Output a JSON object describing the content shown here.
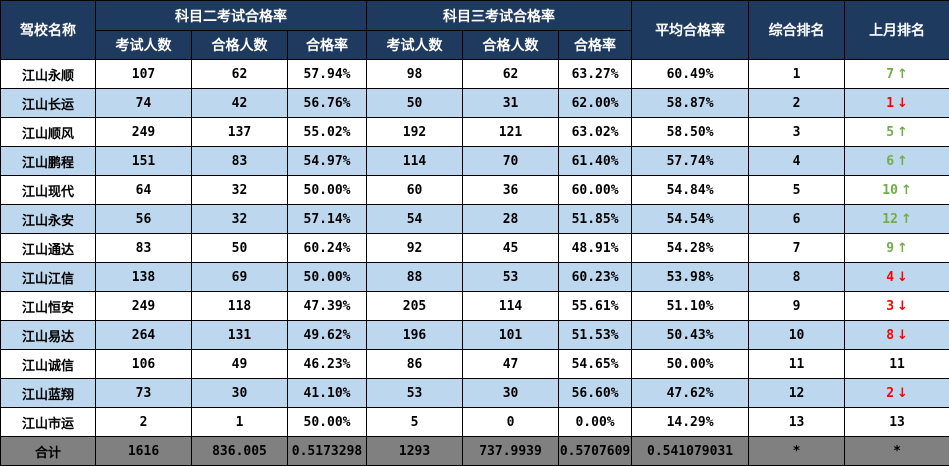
{
  "header": {
    "school": "驾校名称",
    "subject2": "科目二考试合格率",
    "subject3": "科目三考试合格率",
    "avg_rate": "平均合格率",
    "overall_rank": "综合排名",
    "last_month_rank": "上月排名",
    "sub_cols": [
      "考试人数",
      "合格人数",
      "合格率",
      "考试人数",
      "合格人数",
      "合格率"
    ]
  },
  "colors": {
    "header_bg": "#1f3a5f",
    "alt_row": "#bdd7ee",
    "total_row": "#808080",
    "up": "#70ad47",
    "down": "#ff0000"
  },
  "rows": [
    {
      "name": "江山永顺",
      "s2_n": "107",
      "s2_pass": "62",
      "s2_rate": "57.94%",
      "s3_n": "98",
      "s3_pass": "62",
      "s3_rate": "63.27%",
      "avg": "60.49%",
      "rank": "1",
      "last": "7",
      "trend": "up"
    },
    {
      "name": "江山长运",
      "s2_n": "74",
      "s2_pass": "42",
      "s2_rate": "56.76%",
      "s3_n": "50",
      "s3_pass": "31",
      "s3_rate": "62.00%",
      "avg": "58.87%",
      "rank": "2",
      "last": "1",
      "trend": "down"
    },
    {
      "name": "江山顺风",
      "s2_n": "249",
      "s2_pass": "137",
      "s2_rate": "55.02%",
      "s3_n": "192",
      "s3_pass": "121",
      "s3_rate": "63.02%",
      "avg": "58.50%",
      "rank": "3",
      "last": "5",
      "trend": "up"
    },
    {
      "name": "江山鹏程",
      "s2_n": "151",
      "s2_pass": "83",
      "s2_rate": "54.97%",
      "s3_n": "114",
      "s3_pass": "70",
      "s3_rate": "61.40%",
      "avg": "57.74%",
      "rank": "4",
      "last": "6",
      "trend": "up"
    },
    {
      "name": "江山现代",
      "s2_n": "64",
      "s2_pass": "32",
      "s2_rate": "50.00%",
      "s3_n": "60",
      "s3_pass": "36",
      "s3_rate": "60.00%",
      "avg": "54.84%",
      "rank": "5",
      "last": "10",
      "trend": "up"
    },
    {
      "name": "江山永安",
      "s2_n": "56",
      "s2_pass": "32",
      "s2_rate": "57.14%",
      "s3_n": "54",
      "s3_pass": "28",
      "s3_rate": "51.85%",
      "avg": "54.54%",
      "rank": "6",
      "last": "12",
      "trend": "up"
    },
    {
      "name": "江山通达",
      "s2_n": "83",
      "s2_pass": "50",
      "s2_rate": "60.24%",
      "s3_n": "92",
      "s3_pass": "45",
      "s3_rate": "48.91%",
      "avg": "54.28%",
      "rank": "7",
      "last": "9",
      "trend": "up"
    },
    {
      "name": "江山江信",
      "s2_n": "138",
      "s2_pass": "69",
      "s2_rate": "50.00%",
      "s3_n": "88",
      "s3_pass": "53",
      "s3_rate": "60.23%",
      "avg": "53.98%",
      "rank": "8",
      "last": "4",
      "trend": "down"
    },
    {
      "name": "江山恒安",
      "s2_n": "249",
      "s2_pass": "118",
      "s2_rate": "47.39%",
      "s3_n": "205",
      "s3_pass": "114",
      "s3_rate": "55.61%",
      "avg": "51.10%",
      "rank": "9",
      "last": "3",
      "trend": "down"
    },
    {
      "name": "江山易达",
      "s2_n": "264",
      "s2_pass": "131",
      "s2_rate": "49.62%",
      "s3_n": "196",
      "s3_pass": "101",
      "s3_rate": "51.53%",
      "avg": "50.43%",
      "rank": "10",
      "last": "8",
      "trend": "down"
    },
    {
      "name": "江山诚信",
      "s2_n": "106",
      "s2_pass": "49",
      "s2_rate": "46.23%",
      "s3_n": "86",
      "s3_pass": "47",
      "s3_rate": "54.65%",
      "avg": "50.00%",
      "rank": "11",
      "last": "11",
      "trend": "same"
    },
    {
      "name": "江山蓝翔",
      "s2_n": "73",
      "s2_pass": "30",
      "s2_rate": "41.10%",
      "s3_n": "53",
      "s3_pass": "30",
      "s3_rate": "56.60%",
      "avg": "47.62%",
      "rank": "12",
      "last": "2",
      "trend": "down"
    },
    {
      "name": "江山市运",
      "s2_n": "2",
      "s2_pass": "1",
      "s2_rate": "50.00%",
      "s3_n": "5",
      "s3_pass": "0",
      "s3_rate": "0.00%",
      "avg": "14.29%",
      "rank": "13",
      "last": "13",
      "trend": "same"
    }
  ],
  "total": {
    "name": "合计",
    "s2_n": "1616",
    "s2_pass": "836.005",
    "s2_rate": "0.5173298",
    "s3_n": "1293",
    "s3_pass": "737.9939",
    "s3_rate": "0.5707609",
    "avg": "0.541079031",
    "rank": "*",
    "last": "*"
  }
}
